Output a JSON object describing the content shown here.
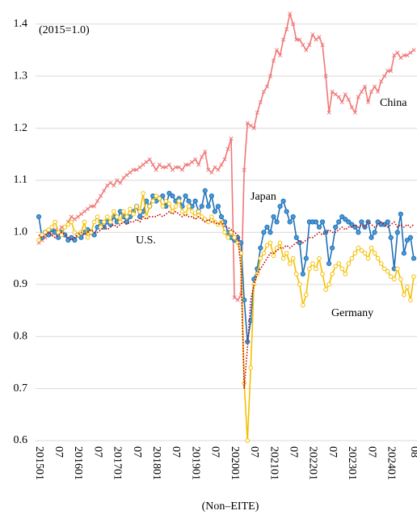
{
  "chart_data": {
    "type": "line",
    "annotations": [
      "(2015=1.0)"
    ],
    "xlabel": "(Non–EITE)",
    "categories": [
      "201501",
      null,
      null,
      null,
      null,
      null,
      "07",
      null,
      null,
      null,
      null,
      null,
      "201601",
      null,
      null,
      null,
      null,
      null,
      "07",
      null,
      null,
      null,
      null,
      null,
      "201701",
      null,
      null,
      null,
      null,
      null,
      "07",
      null,
      null,
      null,
      null,
      null,
      "201801",
      null,
      null,
      null,
      null,
      null,
      "07",
      null,
      null,
      null,
      null,
      null,
      "201901",
      null,
      null,
      null,
      null,
      null,
      "07",
      null,
      null,
      null,
      null,
      null,
      "202001",
      null,
      null,
      null,
      null,
      null,
      "07",
      null,
      null,
      null,
      null,
      null,
      "202101",
      null,
      null,
      null,
      null,
      null,
      "07",
      null,
      null,
      null,
      null,
      null,
      "202201",
      null,
      null,
      null,
      null,
      null,
      "07",
      null,
      null,
      null,
      null,
      null,
      "202301",
      null,
      null,
      null,
      null,
      null,
      "07",
      null,
      null,
      null,
      null,
      null,
      "202401",
      null,
      null,
      null,
      null,
      null,
      null,
      "08"
    ],
    "ylim": [
      0.6,
      1.44
    ],
    "yticks": [
      0.6,
      0.7,
      0.8,
      0.9,
      {
        "value": 1,
        "label": "1.0"
      },
      1.1,
      1.2,
      1.3,
      1.4
    ],
    "grid": true,
    "series": [
      {
        "name": "China",
        "color": "#f07878",
        "marker": "x",
        "values": [
          0.98,
          0.985,
          0.99,
          1.0,
          0.995,
          1.005,
          1.0,
          1.01,
          1.01,
          1.02,
          1.03,
          1.025,
          1.03,
          1.035,
          1.04,
          1.045,
          1.05,
          1.05,
          1.06,
          1.07,
          1.08,
          1.09,
          1.095,
          1.09,
          1.1,
          1.095,
          1.105,
          1.11,
          1.115,
          1.12,
          1.12,
          1.125,
          1.13,
          1.135,
          1.14,
          1.13,
          1.12,
          1.13,
          1.125,
          1.125,
          1.13,
          1.12,
          1.125,
          1.125,
          1.12,
          1.13,
          1.13,
          1.135,
          1.14,
          1.13,
          1.145,
          1.155,
          1.12,
          1.115,
          1.125,
          1.12,
          1.13,
          1.14,
          1.16,
          1.18,
          0.875,
          0.87,
          0.88,
          1.12,
          1.21,
          1.205,
          1.2,
          1.23,
          1.25,
          1.27,
          1.28,
          1.3,
          1.33,
          1.35,
          1.34,
          1.37,
          1.39,
          1.42,
          1.4,
          1.37,
          1.37,
          1.36,
          1.35,
          1.36,
          1.38,
          1.37,
          1.375,
          1.36,
          1.3,
          1.23,
          1.27,
          1.265,
          1.26,
          1.25,
          1.265,
          1.255,
          1.24,
          1.23,
          1.26,
          1.27,
          1.28,
          1.25,
          1.27,
          1.28,
          1.27,
          1.29,
          1.3,
          1.31,
          1.31,
          1.34,
          1.345,
          1.335,
          1.34,
          1.34,
          1.345,
          1.35
        ]
      },
      {
        "name": "Japan",
        "color": "#2170b8",
        "marker": "circle",
        "values": [
          1.03,
          0.99,
          1.0,
          0.995,
          1.005,
          1.0,
          0.99,
          1.0,
          0.995,
          0.985,
          0.99,
          0.985,
          0.995,
          0.99,
          1.0,
          1.005,
          1.0,
          0.995,
          1.01,
          1.02,
          1.01,
          1.02,
          1.015,
          1.03,
          1.02,
          1.04,
          1.03,
          1.02,
          1.03,
          1.04,
          1.05,
          1.03,
          1.04,
          1.06,
          1.05,
          1.07,
          1.06,
          1.065,
          1.07,
          1.05,
          1.075,
          1.07,
          1.06,
          1.065,
          1.05,
          1.07,
          1.06,
          1.05,
          1.06,
          1.04,
          1.05,
          1.08,
          1.05,
          1.07,
          1.04,
          1.05,
          1.03,
          1.02,
          1.0,
          0.99,
          0.985,
          0.99,
          0.98,
          0.87,
          0.79,
          0.83,
          0.91,
          0.93,
          0.97,
          1.0,
          1.01,
          1.0,
          1.03,
          1.02,
          1.05,
          1.06,
          1.04,
          1.02,
          1.03,
          0.99,
          0.98,
          0.92,
          0.95,
          1.02,
          1.02,
          1.02,
          1.01,
          1.02,
          1.0,
          0.94,
          0.97,
          1.01,
          1.02,
          1.03,
          1.025,
          1.02,
          1.015,
          1.01,
          1.0,
          1.02,
          1.01,
          1.02,
          0.99,
          1.0,
          1.02,
          1.015,
          1.015,
          1.02,
          0.99,
          0.93,
          1.0,
          1.035,
          0.96,
          0.985,
          0.99,
          0.95
        ]
      },
      {
        "name": "Germany",
        "color": "#f5c000",
        "marker": "open-circle",
        "values": [
          0.985,
          0.995,
          1.0,
          1.005,
          1.01,
          1.02,
          1.0,
          0.995,
          1.01,
          1.015,
          1.02,
          1.0,
          0.995,
          1.0,
          1.02,
          0.99,
          1.0,
          1.02,
          1.03,
          1.01,
          1.02,
          1.03,
          1.02,
          1.04,
          1.03,
          1.02,
          1.04,
          1.03,
          1.045,
          1.035,
          1.05,
          1.04,
          1.075,
          1.03,
          1.05,
          1.06,
          1.07,
          1.065,
          1.05,
          1.06,
          1.055,
          1.04,
          1.05,
          1.06,
          1.04,
          1.035,
          1.05,
          1.04,
          1.03,
          1.04,
          1.03,
          1.025,
          1.02,
          1.03,
          1.02,
          1.015,
          1.02,
          1.0,
          0.99,
          1.0,
          0.99,
          0.98,
          0.96,
          0.71,
          0.6,
          0.74,
          0.9,
          0.92,
          0.95,
          0.96,
          0.975,
          0.98,
          0.955,
          0.97,
          0.98,
          0.95,
          0.96,
          0.94,
          0.95,
          0.92,
          0.9,
          0.86,
          0.88,
          0.93,
          0.94,
          0.93,
          0.95,
          0.92,
          0.89,
          0.9,
          0.92,
          0.935,
          0.94,
          0.93,
          0.92,
          0.94,
          0.95,
          0.96,
          0.97,
          0.965,
          0.96,
          0.95,
          0.97,
          0.96,
          0.95,
          0.94,
          0.93,
          0.925,
          0.915,
          0.91,
          0.93,
          0.91,
          0.88,
          0.895,
          0.87,
          0.915
        ]
      },
      {
        "name": "U.S.",
        "color": "#c00000",
        "marker": "none",
        "dash": "dotted",
        "values": [
          0.995,
          0.99,
          0.995,
          1.0,
          0.995,
          0.99,
          0.995,
          1.0,
          0.995,
          0.99,
          0.985,
          0.99,
          0.995,
          1.0,
          0.995,
          1.0,
          1.005,
          1.0,
          1.0,
          1.005,
          1.01,
          1.005,
          1.01,
          1.015,
          1.01,
          1.015,
          1.02,
          1.015,
          1.02,
          1.02,
          1.025,
          1.02,
          1.03,
          1.025,
          1.03,
          1.03,
          1.03,
          1.035,
          1.03,
          1.035,
          1.04,
          1.035,
          1.04,
          1.035,
          1.03,
          1.035,
          1.03,
          1.03,
          1.025,
          1.03,
          1.025,
          1.02,
          1.025,
          1.02,
          1.02,
          1.015,
          1.02,
          1.01,
          1.01,
          1.005,
          1.0,
          0.995,
          0.93,
          0.7,
          0.78,
          0.87,
          0.9,
          0.92,
          0.93,
          0.94,
          0.95,
          0.96,
          0.96,
          0.965,
          0.97,
          0.97,
          0.975,
          0.97,
          0.975,
          0.98,
          0.985,
          0.98,
          0.985,
          0.99,
          0.99,
          0.995,
          1.0,
          0.995,
          1.0,
          1.005,
          1.0,
          1.0,
          1.005,
          1.01,
          1.005,
          1.01,
          1.01,
          1.015,
          1.01,
          1.015,
          1.01,
          1.02,
          1.015,
          1.01,
          1.015,
          1.02,
          1.015,
          1.01,
          1.015,
          1.02,
          1.01,
          1.015,
          1.01,
          1.015,
          1.01,
          1.015
        ]
      }
    ]
  }
}
